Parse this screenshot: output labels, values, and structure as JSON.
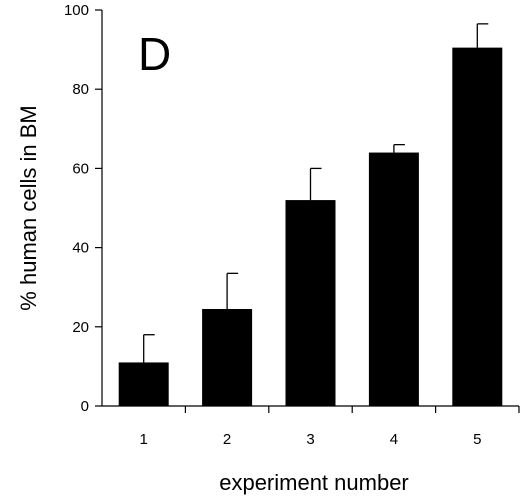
{
  "chart_data": {
    "type": "bar",
    "panel_label": "D",
    "categories": [
      "1",
      "2",
      "3",
      "4",
      "5"
    ],
    "values": [
      11,
      24.5,
      52,
      64,
      90.5
    ],
    "error_plus": [
      7,
      9,
      8,
      2,
      6
    ],
    "xlabel": "experiment number",
    "ylabel": "% human cells in BM",
    "ylim": [
      0,
      100
    ],
    "yticks": [
      "0",
      "20",
      "40",
      "60",
      "80",
      "100"
    ],
    "grid": false,
    "bar_color": "#000000"
  }
}
